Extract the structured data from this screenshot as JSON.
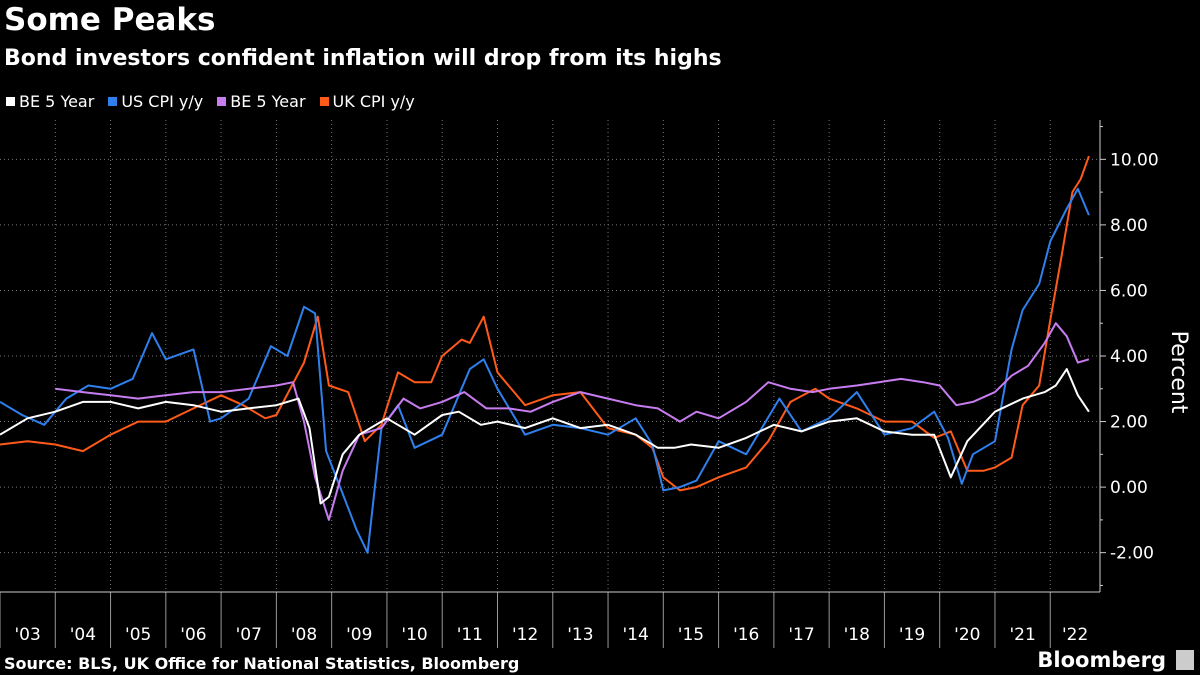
{
  "header": {
    "title": "Some Peaks",
    "subtitle": "Bond investors confident inflation will drop from its highs"
  },
  "legend": [
    {
      "label": "BE 5 Year",
      "color": "#ffffff"
    },
    {
      "label": "US CPI y/y",
      "color": "#2f80ed"
    },
    {
      "label": "BE 5 Year",
      "color": "#c77cf0"
    },
    {
      "label": "UK CPI y/y",
      "color": "#ff5a1a"
    }
  ],
  "footer": {
    "source": "Source: BLS, UK Office for National Statistics, Bloomberg",
    "brand": "Bloomberg"
  },
  "chart_data": {
    "type": "line",
    "title": "Some Peaks",
    "subtitle": "Bond investors confident inflation will drop from its highs",
    "xlabel": "",
    "ylabel": "Percent",
    "xlim": [
      2003.0,
      2022.9
    ],
    "ylim": [
      -3.2,
      11.2
    ],
    "yticks": [
      -2,
      0,
      2,
      4,
      6,
      8,
      10
    ],
    "ytick_labels": [
      "-2.00",
      "0.00",
      "2.00",
      "4.00",
      "6.00",
      "8.00",
      "10.00"
    ],
    "xtick_labels": [
      "'03",
      "'04",
      "'05",
      "'06",
      "'07",
      "'08",
      "'09",
      "'10",
      "'11",
      "'12",
      "'13",
      "'14",
      "'15",
      "'16",
      "'17",
      "'18",
      "'19",
      "'20",
      "'21",
      "'22"
    ],
    "grid": "vertical dotted at year boundaries, horizontal dotted at y ticks",
    "legend_position": "top-left",
    "series": [
      {
        "name": "BE 5 Year",
        "color": "#ffffff",
        "x": [
          2003.0,
          2003.5,
          2004.0,
          2004.5,
          2005.0,
          2005.5,
          2006.0,
          2006.5,
          2007.0,
          2007.5,
          2008.0,
          2008.4,
          2008.6,
          2008.8,
          2008.95,
          2009.2,
          2009.5,
          2010.0,
          2010.5,
          2011.0,
          2011.3,
          2011.7,
          2012.0,
          2012.5,
          2013.0,
          2013.5,
          2014.0,
          2014.5,
          2014.9,
          2015.2,
          2015.5,
          2016.0,
          2016.5,
          2017.0,
          2017.5,
          2018.0,
          2018.5,
          2019.0,
          2019.5,
          2019.9,
          2020.2,
          2020.5,
          2021.0,
          2021.5,
          2021.9,
          2022.1,
          2022.3,
          2022.5,
          2022.7
        ],
        "y": [
          1.6,
          2.1,
          2.3,
          2.6,
          2.6,
          2.4,
          2.6,
          2.5,
          2.3,
          2.4,
          2.5,
          2.7,
          1.8,
          -0.5,
          -0.3,
          1.0,
          1.6,
          2.1,
          1.6,
          2.2,
          2.3,
          1.9,
          2.0,
          1.8,
          2.1,
          1.8,
          1.9,
          1.6,
          1.2,
          1.2,
          1.3,
          1.2,
          1.5,
          1.9,
          1.7,
          2.0,
          2.1,
          1.7,
          1.6,
          1.6,
          0.3,
          1.4,
          2.3,
          2.7,
          2.9,
          3.1,
          3.6,
          2.8,
          2.3
        ]
      },
      {
        "name": "US CPI y/y",
        "color": "#2f80ed",
        "x": [
          2003.0,
          2003.4,
          2003.8,
          2004.2,
          2004.6,
          2005.0,
          2005.4,
          2005.75,
          2006.0,
          2006.5,
          2006.8,
          2007.0,
          2007.5,
          2007.9,
          2008.2,
          2008.5,
          2008.7,
          2008.9,
          2009.2,
          2009.45,
          2009.65,
          2009.9,
          2010.2,
          2010.5,
          2011.0,
          2011.5,
          2011.75,
          2012.0,
          2012.5,
          2013.0,
          2013.5,
          2014.0,
          2014.5,
          2014.8,
          2015.0,
          2015.3,
          2015.6,
          2016.0,
          2016.5,
          2017.1,
          2017.5,
          2018.0,
          2018.5,
          2019.0,
          2019.5,
          2019.9,
          2020.15,
          2020.4,
          2020.6,
          2021.0,
          2021.3,
          2021.5,
          2021.8,
          2022.0,
          2022.3,
          2022.5,
          2022.7
        ],
        "y": [
          2.6,
          2.2,
          1.9,
          2.7,
          3.1,
          3.0,
          3.3,
          4.7,
          3.9,
          4.2,
          2.0,
          2.1,
          2.7,
          4.3,
          4.0,
          5.5,
          5.3,
          1.1,
          -0.2,
          -1.3,
          -2.0,
          1.8,
          2.5,
          1.2,
          1.6,
          3.6,
          3.9,
          3.0,
          1.6,
          1.9,
          1.8,
          1.6,
          2.1,
          1.3,
          -0.1,
          0.0,
          0.2,
          1.4,
          1.0,
          2.7,
          1.7,
          2.1,
          2.9,
          1.6,
          1.8,
          2.3,
          1.5,
          0.1,
          1.0,
          1.4,
          4.2,
          5.4,
          6.2,
          7.5,
          8.5,
          9.1,
          8.3
        ]
      },
      {
        "name": "BE 5 Year",
        "color": "#c77cf0",
        "x": [
          2004.0,
          2004.5,
          2005.0,
          2005.5,
          2006.0,
          2006.5,
          2007.0,
          2008.0,
          2008.3,
          2008.5,
          2008.7,
          2008.95,
          2009.2,
          2009.5,
          2009.9,
          2010.3,
          2010.6,
          2011.0,
          2011.4,
          2011.8,
          2012.2,
          2012.6,
          2013.0,
          2013.5,
          2014.0,
          2014.5,
          2014.9,
          2015.3,
          2015.6,
          2016.0,
          2016.5,
          2016.9,
          2017.3,
          2017.7,
          2018.0,
          2018.5,
          2018.9,
          2019.3,
          2019.7,
          2020.0,
          2020.3,
          2020.6,
          2021.0,
          2021.3,
          2021.6,
          2021.9,
          2022.1,
          2022.3,
          2022.5,
          2022.7
        ],
        "y": [
          3.0,
          2.9,
          2.8,
          2.7,
          2.8,
          2.9,
          2.9,
          3.1,
          3.2,
          2.0,
          0.3,
          -1.0,
          0.5,
          1.6,
          1.8,
          2.7,
          2.4,
          2.6,
          2.9,
          2.4,
          2.4,
          2.3,
          2.6,
          2.9,
          2.7,
          2.5,
          2.4,
          2.0,
          2.3,
          2.1,
          2.6,
          3.2,
          3.0,
          2.9,
          3.0,
          3.1,
          3.2,
          3.3,
          3.2,
          3.1,
          2.5,
          2.6,
          2.9,
          3.4,
          3.7,
          4.4,
          5.0,
          4.6,
          3.8,
          3.9
        ]
      },
      {
        "name": "UK CPI y/y",
        "color": "#ff5a1a",
        "x": [
          2003.0,
          2003.5,
          2004.0,
          2004.5,
          2005.0,
          2005.5,
          2006.0,
          2006.5,
          2007.0,
          2007.4,
          2007.8,
          2008.0,
          2008.5,
          2008.75,
          2008.95,
          2009.3,
          2009.6,
          2009.9,
          2010.2,
          2010.5,
          2010.8,
          2011.0,
          2011.35,
          2011.5,
          2011.75,
          2012.0,
          2012.5,
          2013.0,
          2013.5,
          2014.0,
          2014.5,
          2014.8,
          2015.0,
          2015.3,
          2015.6,
          2016.0,
          2016.5,
          2016.9,
          2017.3,
          2017.75,
          2018.0,
          2018.5,
          2019.0,
          2019.5,
          2019.9,
          2020.2,
          2020.5,
          2020.8,
          2021.0,
          2021.3,
          2021.5,
          2021.8,
          2022.0,
          2022.2,
          2022.4,
          2022.55,
          2022.7
        ],
        "y": [
          1.3,
          1.4,
          1.3,
          1.1,
          1.6,
          2.0,
          2.0,
          2.4,
          2.8,
          2.5,
          2.1,
          2.2,
          3.8,
          5.2,
          3.1,
          2.9,
          1.4,
          1.9,
          3.5,
          3.2,
          3.2,
          4.0,
          4.5,
          4.4,
          5.2,
          3.5,
          2.5,
          2.8,
          2.9,
          1.8,
          1.6,
          1.2,
          0.3,
          -0.1,
          0.0,
          0.3,
          0.6,
          1.4,
          2.6,
          3.0,
          2.7,
          2.4,
          2.0,
          2.0,
          1.5,
          1.7,
          0.5,
          0.5,
          0.6,
          0.9,
          2.5,
          3.1,
          5.1,
          7.0,
          9.0,
          9.4,
          10.1
        ]
      }
    ]
  }
}
